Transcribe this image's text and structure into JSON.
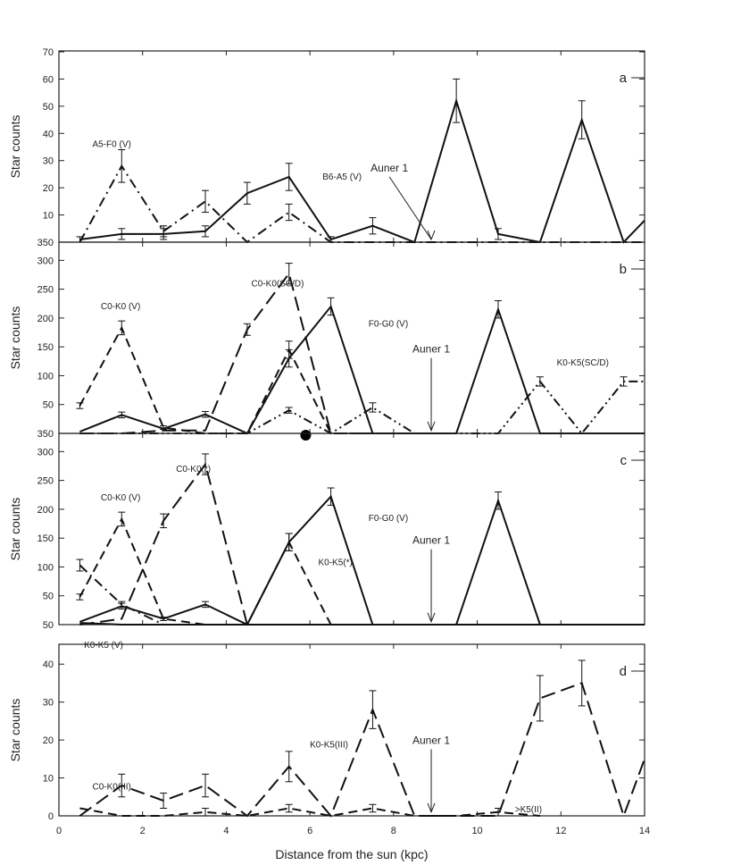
{
  "chart_data": [
    {
      "panel_letter": "a",
      "type": "line",
      "ylabel": "Star counts",
      "ylim": [
        0,
        70
      ],
      "yticks": [
        10,
        20,
        30,
        40,
        50,
        60,
        70
      ],
      "ytick_labels": [
        "10",
        "20",
        "30",
        "40",
        "50",
        "60",
        "70"
      ],
      "baseline_label": "350",
      "series": [
        {
          "name": "A5-F0 (V)",
          "style": "dashdot",
          "x": [
            0.5,
            1.5,
            2.5,
            3.5,
            4.5,
            5.5,
            6.5,
            7.5,
            8.5,
            9.5,
            10.5,
            11.5,
            12.5,
            13.5,
            14
          ],
          "y": [
            0,
            28,
            4,
            15,
            0,
            11,
            0,
            0,
            0,
            0,
            0,
            0,
            0,
            0,
            0
          ],
          "err": [
            0,
            6,
            2,
            4,
            0,
            3,
            0,
            0,
            0,
            0,
            0,
            0,
            0,
            0,
            0
          ]
        },
        {
          "name": "B6-A5 (V)",
          "style": "solid",
          "x": [
            0.5,
            1.5,
            2.5,
            3.5,
            4.5,
            5.5,
            6.5,
            7.5,
            8.5,
            9.5,
            10.5,
            11.5,
            12.5,
            13.5,
            14
          ],
          "y": [
            1,
            3,
            3,
            4,
            18,
            24,
            1,
            6,
            0,
            52,
            3,
            0,
            45,
            0,
            8
          ],
          "err": [
            1,
            2,
            2,
            2,
            4,
            5,
            1,
            3,
            0,
            8,
            2,
            0,
            7,
            0,
            0
          ]
        }
      ],
      "labels": [
        {
          "text": "A5-F0 (V)",
          "x": 0.8,
          "y": 35
        },
        {
          "text": "B6-A5 (V)",
          "x": 6.3,
          "y": 23
        }
      ],
      "arrow": {
        "label": "Auner 1",
        "label_x": 7.9,
        "label_y": 26,
        "x_tip": 8.9,
        "y_tip": 1
      }
    },
    {
      "panel_letter": "b",
      "type": "line",
      "ylabel": "Star counts",
      "ylim": [
        0,
        330
      ],
      "yticks": [
        50,
        100,
        150,
        200,
        250,
        300
      ],
      "ytick_labels": [
        "50",
        "100",
        "150",
        "200",
        "250",
        "300"
      ],
      "baseline_label": "350",
      "series": [
        {
          "name": "C0-K0 (V)",
          "style": "dashed",
          "x": [
            0.5,
            1.5,
            2.5,
            3.5,
            4.5,
            5.5,
            6.5,
            7.5
          ],
          "y": [
            48,
            183,
            10,
            0,
            0,
            145,
            0,
            0
          ],
          "err": [
            5,
            12,
            3,
            0,
            0,
            15,
            0,
            0
          ]
        },
        {
          "name": "C0-K0(SC/D)",
          "style": "longdash",
          "x": [
            0.5,
            1.5,
            2.5,
            3.5,
            4.5,
            5.5,
            6.5,
            7.5
          ],
          "y": [
            0,
            0,
            5,
            5,
            180,
            277,
            0,
            0
          ],
          "err": [
            0,
            0,
            0,
            0,
            10,
            18,
            0,
            0
          ]
        },
        {
          "name": "F0-G0 (V)",
          "style": "solid",
          "x": [
            0.5,
            1.5,
            2.5,
            3.5,
            4.5,
            5.5,
            6.5,
            7.5,
            8.5,
            9.5,
            10.5,
            11.5,
            12.5,
            13.5,
            14
          ],
          "y": [
            3,
            32,
            8,
            33,
            0,
            130,
            220,
            0,
            0,
            0,
            215,
            0,
            0,
            0,
            0
          ],
          "err": [
            0,
            5,
            0,
            5,
            0,
            15,
            15,
            0,
            0,
            0,
            15,
            0,
            0,
            0,
            0
          ]
        },
        {
          "name": "K0-K5(SC/D)",
          "style": "dashdotdot",
          "x": [
            0.5,
            1.5,
            2.5,
            3.5,
            4.5,
            5.5,
            6.5,
            7.5,
            8.5,
            9.5,
            10.5,
            11.5,
            12.5,
            13.5,
            14
          ],
          "y": [
            0,
            0,
            0,
            0,
            0,
            40,
            0,
            45,
            0,
            0,
            0,
            90,
            0,
            90,
            90
          ],
          "err": [
            0,
            0,
            0,
            0,
            0,
            5,
            0,
            8,
            0,
            0,
            0,
            8,
            0,
            8,
            0
          ]
        }
      ],
      "labels": [
        {
          "text": "C0-K0 (V)",
          "x": 1.0,
          "y": 215
        },
        {
          "text": "C0-K0(SC/D)",
          "x": 4.6,
          "y": 255
        },
        {
          "text": "F0-G0 (V)",
          "x": 7.4,
          "y": 185
        },
        {
          "text": "K0-K5(SC/D)",
          "x": 11.9,
          "y": 118
        }
      ],
      "arrow": {
        "label": "Auner 1",
        "label_x": 8.9,
        "label_y": 140,
        "x_tip": 8.9,
        "y_tip": 5
      },
      "marker": {
        "x": 5.9,
        "y": -4
      }
    },
    {
      "panel_letter": "c",
      "type": "line",
      "ylabel": "Star counts",
      "ylim": [
        0,
        330
      ],
      "yticks": [
        50,
        100,
        150,
        200,
        250,
        300
      ],
      "ytick_labels": [
        "50",
        "100",
        "150",
        "200",
        "250",
        "300"
      ],
      "baseline_label": "50",
      "series": [
        {
          "name": "C0-K0 (V)",
          "style": "dashed",
          "x": [
            0.5,
            1.5,
            2.5,
            3.5,
            4.5,
            5.5,
            6.5,
            7.5
          ],
          "y": [
            48,
            183,
            10,
            0,
            0,
            143,
            0,
            0
          ],
          "err": [
            5,
            12,
            3,
            0,
            0,
            15,
            0,
            0
          ]
        },
        {
          "name": "C0-K0(*)",
          "style": "longdash",
          "x": [
            0.5,
            1.5,
            2.5,
            3.5,
            4.5,
            5.5,
            6.5
          ],
          "y": [
            0,
            10,
            180,
            278,
            0,
            0,
            0
          ],
          "err": [
            0,
            0,
            12,
            18,
            0,
            0,
            0
          ]
        },
        {
          "name": "K0-K5(*)",
          "style": "dashdot",
          "x": [
            0.5,
            1.5,
            2.5,
            3.5,
            4.5,
            5.5,
            6.5,
            7.5
          ],
          "y": [
            103,
            35,
            0,
            0,
            0,
            0,
            0,
            0
          ],
          "err": [
            10,
            5,
            0,
            0,
            0,
            0,
            0,
            0
          ]
        },
        {
          "name": "F0-G0 (V)",
          "style": "solid",
          "x": [
            0.5,
            1.5,
            2.5,
            3.5,
            4.5,
            5.5,
            6.5,
            7.5,
            8.5,
            9.5,
            10.5,
            11.5,
            12.5,
            13.5,
            14
          ],
          "y": [
            5,
            32,
            10,
            35,
            0,
            143,
            222,
            0,
            0,
            0,
            215,
            0,
            0,
            0,
            0
          ],
          "err": [
            0,
            5,
            0,
            5,
            0,
            15,
            15,
            0,
            0,
            0,
            15,
            0,
            0,
            0,
            0
          ]
        },
        {
          "name": "K0-K5 (V)",
          "style": "solid-thin",
          "x": [
            0.5,
            1.5,
            2.5,
            3.5,
            4.5,
            5.5,
            6.5,
            7.5,
            8.5,
            9.5,
            10.5,
            11.5,
            12.5,
            13.5,
            14
          ],
          "y": [
            3,
            0,
            0,
            0,
            0,
            0,
            0,
            0,
            0,
            0,
            0,
            0,
            0,
            0,
            0
          ],
          "err": [
            0,
            0,
            0,
            0,
            0,
            0,
            0,
            0,
            0,
            0,
            0,
            0,
            0,
            0,
            0
          ]
        }
      ],
      "labels": [
        {
          "text": "C0-K0 (V)",
          "x": 1.0,
          "y": 215
        },
        {
          "text": "C0-K0(*)",
          "x": 2.8,
          "y": 265
        },
        {
          "text": "F0-G0 (V)",
          "x": 7.4,
          "y": 180
        },
        {
          "text": "K0-K5(*)",
          "x": 6.2,
          "y": 103
        },
        {
          "text": "K0-K5 (V)",
          "x": 0.6,
          "y": -40
        }
      ],
      "arrow": {
        "label": "Auner 1",
        "label_x": 8.9,
        "label_y": 140,
        "x_tip": 8.9,
        "y_tip": 5
      }
    },
    {
      "panel_letter": "d",
      "type": "line",
      "ylabel": "Star counts",
      "ylim": [
        0,
        45
      ],
      "yticks": [
        0,
        10,
        20,
        30,
        40
      ],
      "ytick_labels": [
        "0",
        "10",
        "20",
        "30",
        "40"
      ],
      "baseline_label": "",
      "series": [
        {
          "name": "K0-K5(III)",
          "style": "longdash",
          "x": [
            0.5,
            1.5,
            2.5,
            3.5,
            4.5,
            5.5,
            6.5,
            7.5,
            8.5,
            9.5,
            10.5,
            11.5,
            12.5,
            13.5,
            14
          ],
          "y": [
            0,
            8,
            4,
            8,
            0,
            13,
            0,
            28,
            0,
            0,
            0,
            31,
            35,
            0,
            15
          ],
          "err": [
            0,
            3,
            2,
            3,
            0,
            4,
            0,
            5,
            0,
            0,
            0,
            6,
            6,
            0,
            0
          ]
        },
        {
          "name": "C0-K0(III)",
          "style": "dashed",
          "x": [
            0.5,
            1.5,
            2.5,
            3.5,
            4.5,
            5.5,
            6.5,
            7.5,
            8.5,
            9.5,
            10.5,
            11.5
          ],
          "y": [
            2,
            0,
            0,
            1,
            0,
            2,
            0,
            2,
            0,
            0,
            1,
            0
          ],
          "err": [
            0,
            0,
            0,
            1,
            0,
            1,
            0,
            1,
            0,
            0,
            1,
            0
          ]
        }
      ],
      "labels": [
        {
          "text": "C0-K0(III)",
          "x": 0.8,
          "y": 7
        },
        {
          "text": "K0-K5(III)",
          "x": 6.0,
          "y": 18
        },
        {
          "text": ">K5(II)",
          "x": 10.9,
          "y": 1
        }
      ],
      "arrow": {
        "label": "Auner 1",
        "label_x": 8.9,
        "label_y": 19,
        "x_tip": 8.9,
        "y_tip": 1
      }
    }
  ],
  "xaxis": {
    "label": "Distance from the sun (kpc)",
    "xlim": [
      0,
      14
    ],
    "ticks": [
      0,
      2,
      4,
      6,
      8,
      10,
      12,
      14
    ],
    "tick_labels": [
      "0",
      "2",
      "4",
      "6",
      "8",
      "10",
      "12",
      "14"
    ]
  }
}
